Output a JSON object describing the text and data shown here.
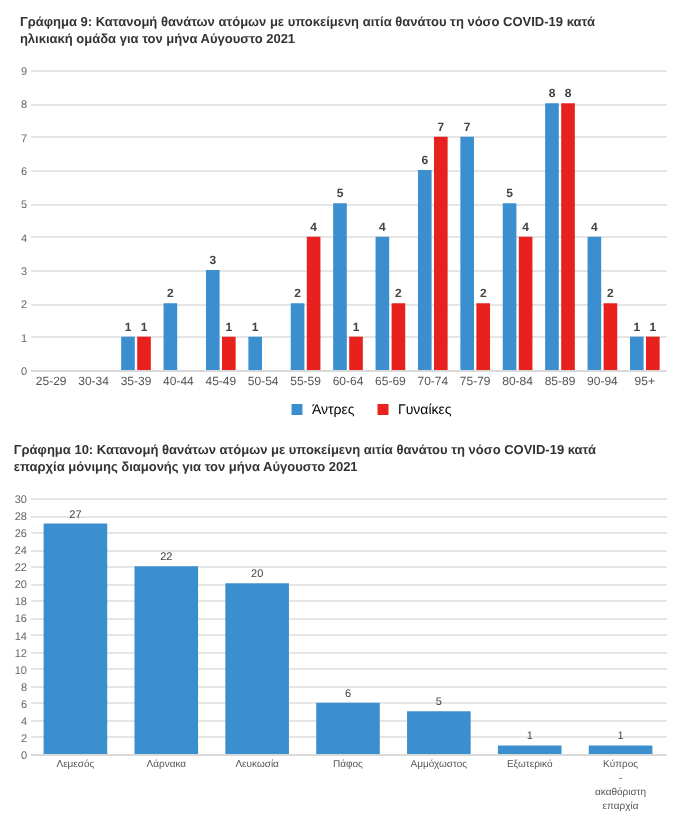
{
  "chart_data": [
    {
      "type": "bar",
      "title": "Γράφημα 9: Κατανομή θανάτων ατόμων με υποκείμενη αιτία θανάτου τη νόσο COVID-19 κατά ηλικιακή ομάδα για τον μήνα Αύγουστο 2021",
      "categories": [
        "25-29",
        "30-34",
        "35-39",
        "40-44",
        "45-49",
        "50-54",
        "55-59",
        "60-64",
        "65-69",
        "70-74",
        "75-79",
        "80-84",
        "85-89",
        "90-94",
        "95+"
      ],
      "series": [
        {
          "name": "Άντρες",
          "color": "#3b8fcf",
          "values": [
            null,
            null,
            1,
            2,
            3,
            1,
            2,
            5,
            4,
            6,
            7,
            5,
            8,
            4,
            1
          ]
        },
        {
          "name": "Γυναίκες",
          "color": "#e8201e",
          "values": [
            null,
            null,
            1,
            null,
            1,
            null,
            4,
            1,
            2,
            7,
            2,
            4,
            8,
            2,
            1
          ]
        }
      ],
      "ylim": [
        0,
        9
      ],
      "yticks": [
        0,
        1,
        2,
        3,
        4,
        5,
        6,
        7,
        8,
        9
      ],
      "grid": "y",
      "legend": "bottom",
      "data_labels": true
    },
    {
      "type": "bar",
      "title": "Γράφημα 10: Κατανομή θανάτων ατόμων με υποκείμενη αιτία θανάτου τη νόσο COVID-19 κατά επαρχία μόνιμης διαμονής για τον μήνα Αύγουστο 2021",
      "categories": [
        "Λεμεσός",
        "Λάρνακα",
        "Λευκωσία",
        "Πάφος",
        "Αμμόχωστος",
        "Εξωτερικό",
        "Κύπρος - ακαθόριστη επαρχία"
      ],
      "values": [
        27,
        22,
        20,
        6,
        5,
        1,
        1
      ],
      "color": "#3b8fcf",
      "ylim": [
        0,
        30
      ],
      "yticks": [
        0,
        2,
        4,
        6,
        8,
        10,
        12,
        14,
        16,
        18,
        20,
        22,
        24,
        26,
        28,
        30
      ],
      "grid": "y",
      "data_labels": true
    }
  ]
}
